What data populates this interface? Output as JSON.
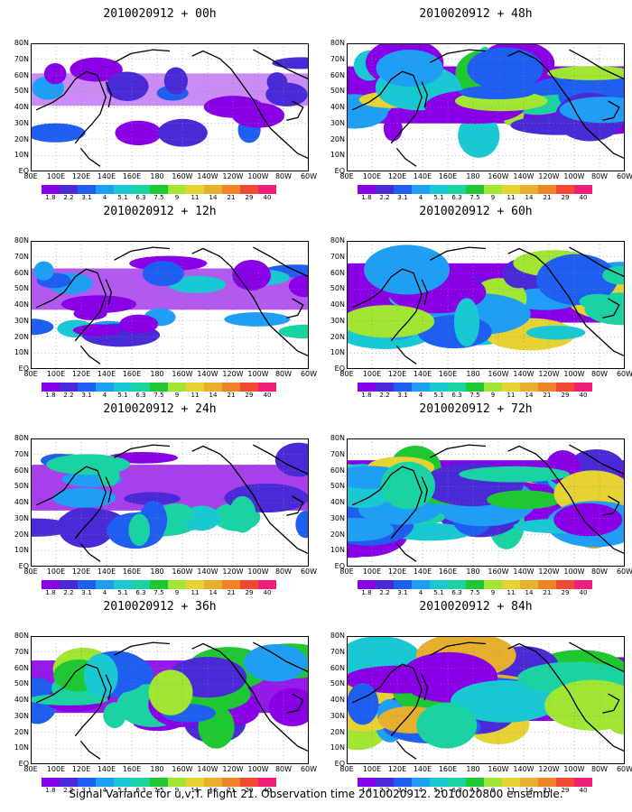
{
  "panels": [
    {
      "title": "2010020912 + 00h",
      "intensity": 0.15
    },
    {
      "title": "2010020912 + 48h",
      "intensity": 0.7
    },
    {
      "title": "2010020912 + 12h",
      "intensity": 0.35
    },
    {
      "title": "2010020912 + 60h",
      "intensity": 0.75
    },
    {
      "title": "2010020912 + 24h",
      "intensity": 0.45
    },
    {
      "title": "2010020912 + 72h",
      "intensity": 0.8
    },
    {
      "title": "2010020912 + 36h",
      "intensity": 0.6
    },
    {
      "title": "2010020912 + 84h",
      "intensity": 0.85
    }
  ],
  "lat_labels": [
    "80N",
    "70N",
    "60N",
    "50N",
    "40N",
    "30N",
    "20N",
    "10N",
    "EQ"
  ],
  "lon_labels": [
    "80E",
    "100E",
    "120E",
    "140E",
    "160E",
    "180",
    "160W",
    "140W",
    "120W",
    "100W",
    "80W",
    "60W"
  ],
  "colorbar": {
    "colors": [
      "#8a00e6",
      "#4a2ad6",
      "#1e5ef0",
      "#1e9ef5",
      "#18c8d2",
      "#19d3a3",
      "#1ec830",
      "#a0e632",
      "#e6d232",
      "#e6af2d",
      "#f08228",
      "#f04a32",
      "#f01e78"
    ],
    "labels": [
      "1.8",
      "2.2",
      "3.1",
      "4",
      "5.1",
      "6.3",
      "7.5",
      "9",
      "11",
      "14",
      "21",
      "29",
      "40"
    ]
  },
  "caption": "Signal Variance for u,v,T. Flight 21. Observation time 2010020912. 2010020800 ensemble."
}
